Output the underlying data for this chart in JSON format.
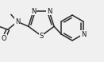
{
  "bg_color": "#f0f0f0",
  "bond_color": "#2a2a2a",
  "figsize": [
    1.31,
    0.78
  ],
  "dpi": 100,
  "lw": 1.1,
  "fs": 5.5,
  "xlim": [
    0,
    131
  ],
  "ylim": [
    0,
    78
  ]
}
